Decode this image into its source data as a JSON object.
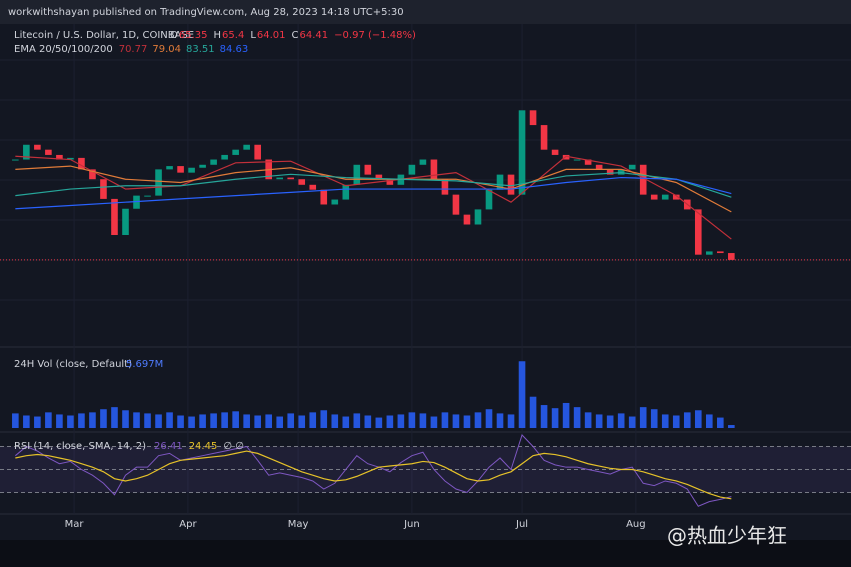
{
  "chart_data": {
    "type": "candlestick",
    "publisher": "workwithshayan published on TradingView.com, Aug 28, 2023 14:18 UTC+5:30",
    "title": "Litecoin / U.S. Dollar, 1D, COINBASE",
    "ohlc": [
      {
        "label": "O",
        "value": 65.35
      },
      {
        "label": "H",
        "value": 65.4
      },
      {
        "label": "L",
        "value": 64.01
      },
      {
        "label": "C",
        "value": 64.41
      }
    ],
    "change": "−0.97 (−1.48%)",
    "up_color": "#089981",
    "down_color": "#f23645",
    "x": [
      0,
      3,
      6,
      9,
      12,
      15,
      18,
      21,
      24,
      27,
      30,
      33,
      36,
      39,
      42,
      45,
      48,
      51,
      54,
      57,
      60,
      63,
      66,
      69,
      72,
      75,
      78,
      81,
      84,
      87,
      90,
      93,
      96,
      99,
      102,
      105,
      108,
      111,
      114,
      117,
      120,
      123,
      126,
      129,
      132,
      135,
      138,
      141,
      144,
      147,
      150,
      153,
      156,
      159,
      162,
      165,
      168,
      171,
      174,
      177,
      180,
      183,
      186,
      189,
      192,
      195
    ],
    "close": [
      95,
      99.5,
      98,
      96.4,
      95,
      95.5,
      92,
      89,
      83,
      72,
      80,
      84,
      84,
      92,
      93,
      91,
      92.5,
      93.4,
      95,
      96.4,
      98,
      99.5,
      95,
      89,
      89.5,
      89,
      87.3,
      85.8,
      81.3,
      82.8,
      87.3,
      93.4,
      90.4,
      89,
      87.3,
      90.4,
      93.4,
      95,
      89,
      84.3,
      78.2,
      75.2,
      79.8,
      85.8,
      90.4,
      84.3,
      110,
      105.5,
      98,
      96.4,
      95,
      95,
      93.4,
      92,
      90.4,
      92,
      93.4,
      84.3,
      82.8,
      84.3,
      82.8,
      79.8,
      66,
      67,
      66.5,
      64.41
    ],
    "xlim": [
      -2,
      196
    ],
    "xticks": [
      {
        "value": 16,
        "label": "Mar"
      },
      {
        "value": 47,
        "label": "Apr"
      },
      {
        "value": 77,
        "label": "May"
      },
      {
        "value": 108,
        "label": "Jun"
      },
      {
        "value": 138,
        "label": "Jul"
      },
      {
        "value": 169,
        "label": "Aug"
      }
    ],
    "ylim": [
      40,
      136
    ],
    "ema": {
      "title": "EMA 20/50/100/200",
      "x": [
        0,
        15,
        30,
        45,
        60,
        75,
        90,
        105,
        120,
        135,
        150,
        165,
        180,
        195
      ],
      "series": [
        {
          "color": "#c2303a",
          "values": [
            96,
            95,
            86,
            87,
            94,
            94.5,
            87,
            89,
            91,
            82,
            96,
            93,
            84,
            70.77
          ]
        },
        {
          "color": "#e07b39",
          "values": [
            92,
            93,
            89,
            88,
            91,
            92.5,
            89,
            89,
            89,
            86,
            92,
            92,
            88,
            79.04
          ]
        },
        {
          "color": "#26a69a",
          "values": [
            84,
            86,
            87,
            87,
            89,
            90.5,
            89.5,
            89,
            88.5,
            87,
            90,
            91,
            89,
            83.51
          ]
        },
        {
          "color": "#2962ff",
          "values": [
            80,
            81,
            82,
            83,
            84,
            85,
            86,
            86,
            86,
            86,
            88,
            89.5,
            89,
            84.63
          ]
        }
      ]
    },
    "volume": {
      "title": "24H Vol (close, Default)",
      "color": "#2962ff",
      "ylim": [
        0,
        140
      ],
      "values": [
        28,
        24,
        22,
        30,
        26,
        24,
        28,
        30,
        36,
        40,
        34,
        30,
        28,
        26,
        30,
        24,
        22,
        26,
        28,
        30,
        32,
        26,
        24,
        26,
        22,
        28,
        24,
        30,
        34,
        26,
        22,
        28,
        24,
        20,
        24,
        26,
        30,
        28,
        22,
        30,
        26,
        24,
        30,
        36,
        28,
        26,
        128,
        60,
        44,
        38,
        48,
        40,
        30,
        26,
        24,
        28,
        22,
        40,
        36,
        26,
        24,
        30,
        34,
        26,
        20,
        5.697
      ],
      "value_label": "5.697M"
    },
    "rsi": {
      "title": "RSI (14, close, SMA, 14, 2)",
      "extra": "∅ ∅",
      "ylim": [
        13,
        80
      ],
      "levels": [
        70,
        50,
        30
      ],
      "rsi_color": "#7e57c2",
      "ma_color": "#e6c229",
      "values": [
        62,
        70,
        66,
        60,
        55,
        57,
        50,
        45,
        38,
        28,
        45,
        52,
        52,
        62,
        64,
        58,
        60,
        62,
        64,
        66,
        68,
        70,
        58,
        45,
        47,
        45,
        43,
        40,
        33,
        38,
        50,
        62,
        55,
        52,
        48,
        56,
        62,
        65,
        50,
        40,
        33,
        30,
        40,
        52,
        60,
        50,
        80,
        70,
        58,
        54,
        52,
        52,
        50,
        48,
        46,
        50,
        52,
        38,
        36,
        40,
        38,
        33,
        18,
        22,
        24,
        26.41
      ],
      "ma": [
        60,
        62,
        63,
        62,
        60,
        58,
        55,
        52,
        48,
        42,
        40,
        42,
        45,
        50,
        55,
        58,
        59,
        60,
        61,
        62,
        64,
        66,
        64,
        60,
        56,
        52,
        48,
        45,
        42,
        40,
        41,
        44,
        48,
        52,
        53,
        54,
        55,
        57,
        56,
        52,
        47,
        42,
        40,
        41,
        45,
        48,
        55,
        62,
        64,
        63,
        61,
        58,
        55,
        53,
        51,
        50,
        50,
        48,
        45,
        42,
        40,
        37,
        33,
        29,
        26,
        24.45
      ]
    },
    "watermark": "@热血少年狂"
  }
}
